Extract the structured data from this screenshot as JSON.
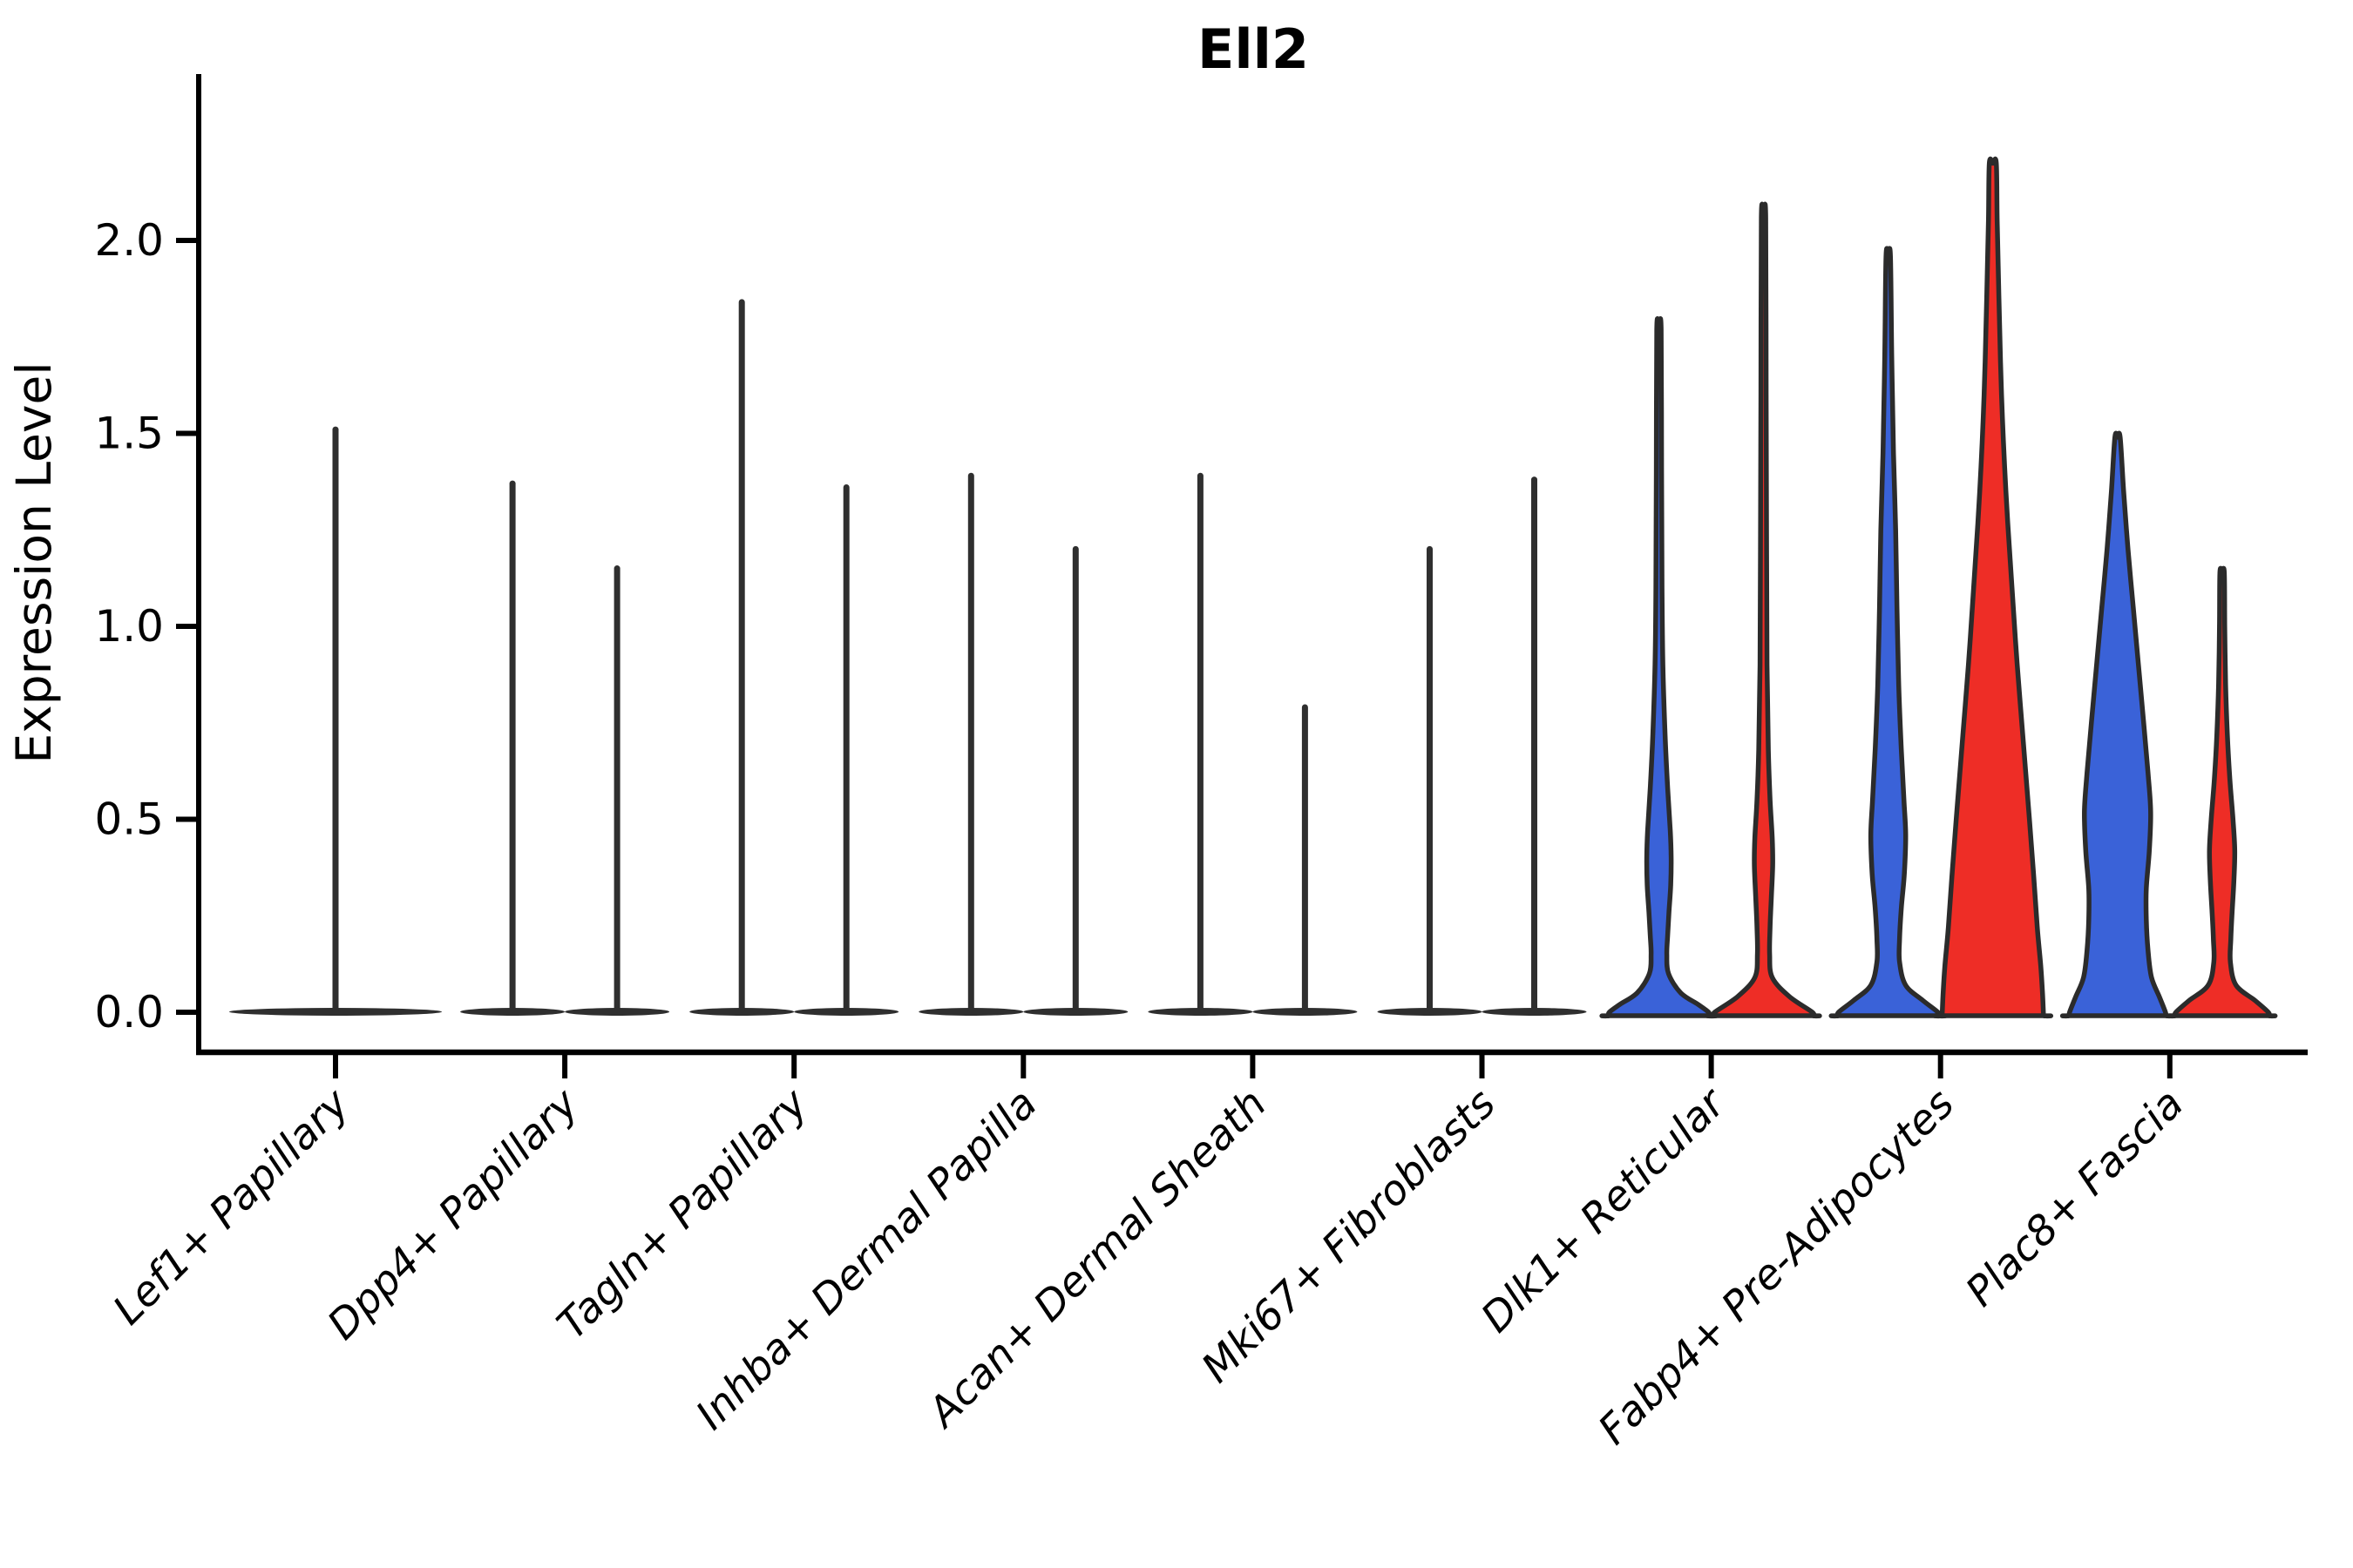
{
  "chart_data": {
    "type": "violin",
    "title": "Ell2",
    "ylabel": "Expression Level",
    "xlabel": "",
    "ylim": [
      0,
      2.45
    ],
    "yticks": [
      "0.0",
      "0.5",
      "1.0",
      "1.5",
      "2.0"
    ],
    "ytick_values": [
      0.0,
      0.5,
      1.0,
      1.5,
      2.0
    ],
    "grid": "off",
    "legend": "none",
    "categories": [
      "Lef1+ Papillary",
      "Dpp4+ Papillary",
      "Tagln+ Papillary",
      "Inhba+ Dermal Papilla",
      "Acan+ Dermal Sheath",
      "Mki67+ Fibroblasts",
      "Dlk1+ Reticular",
      "Fabp4+ Pre-Adipocytes",
      "Plac8+ Fascia"
    ],
    "series": [
      {
        "name": "blue",
        "color": "#3A62D8",
        "max_expression": [
          1.51,
          1.37,
          1.84,
          1.39,
          1.39,
          1.2,
          1.77,
          1.96,
          1.49
        ]
      },
      {
        "name": "red",
        "color": "#EE2D26",
        "max_expression": [
          null,
          1.15,
          1.36,
          1.2,
          0.79,
          1.38,
          2.06,
          2.2,
          1.14
        ]
      }
    ],
    "flat_violins": [
      {
        "cat": 0,
        "offset": 0,
        "base_halfwidth": 122,
        "spike": 1.51
      },
      {
        "cat": 1,
        "offset": -60,
        "base_halfwidth": 60,
        "spike": 1.37
      },
      {
        "cat": 1,
        "offset": 60,
        "base_halfwidth": 60,
        "spike": 1.15
      },
      {
        "cat": 2,
        "offset": -60,
        "base_halfwidth": 60,
        "spike": 1.84
      },
      {
        "cat": 2,
        "offset": 60,
        "base_halfwidth": 60,
        "spike": 1.36
      },
      {
        "cat": 3,
        "offset": -60,
        "base_halfwidth": 60,
        "spike": 1.39
      },
      {
        "cat": 3,
        "offset": 60,
        "base_halfwidth": 60,
        "spike": 1.2
      },
      {
        "cat": 4,
        "offset": -60,
        "base_halfwidth": 60,
        "spike": 1.39
      },
      {
        "cat": 4,
        "offset": 60,
        "base_halfwidth": 60,
        "spike": 0.79
      },
      {
        "cat": 5,
        "offset": -60,
        "base_halfwidth": 60,
        "spike": 1.2
      },
      {
        "cat": 5,
        "offset": 60,
        "base_halfwidth": 60,
        "spike": 1.38
      }
    ],
    "shaped_violins": [
      {
        "cat": 6,
        "offset": -60,
        "series": "blue",
        "profile": [
          [
            1.77,
            2.5
          ],
          [
            1.4,
            3
          ],
          [
            1.1,
            3.5
          ],
          [
            0.9,
            4.5
          ],
          [
            0.72,
            7
          ],
          [
            0.58,
            10
          ],
          [
            0.47,
            13
          ],
          [
            0.4,
            14
          ],
          [
            0.33,
            13.5
          ],
          [
            0.26,
            11.5
          ],
          [
            0.2,
            10
          ],
          [
            0.15,
            9
          ],
          [
            0.1,
            11
          ],
          [
            0.05,
            25
          ],
          [
            0.02,
            45
          ],
          [
            0,
            57
          ]
        ]
      },
      {
        "cat": 6,
        "offset": 60,
        "series": "red",
        "profile": [
          [
            2.06,
            2.5
          ],
          [
            1.6,
            3
          ],
          [
            1.2,
            3.5
          ],
          [
            0.9,
            4
          ],
          [
            0.68,
            5.5
          ],
          [
            0.55,
            7.5
          ],
          [
            0.45,
            10
          ],
          [
            0.38,
            10.5
          ],
          [
            0.3,
            9
          ],
          [
            0.22,
            7.5
          ],
          [
            0.15,
            7
          ],
          [
            0.09,
            10
          ],
          [
            0.04,
            30
          ],
          [
            0,
            56
          ]
        ]
      },
      {
        "cat": 7,
        "offset": -60,
        "series": "blue",
        "profile": [
          [
            1.96,
            2.5
          ],
          [
            1.7,
            4
          ],
          [
            1.45,
            6
          ],
          [
            1.25,
            8.5
          ],
          [
            1.05,
            10
          ],
          [
            0.85,
            12
          ],
          [
            0.68,
            15
          ],
          [
            0.55,
            18
          ],
          [
            0.46,
            20
          ],
          [
            0.36,
            18.5
          ],
          [
            0.27,
            15
          ],
          [
            0.19,
            13
          ],
          [
            0.13,
            13
          ],
          [
            0.07,
            20
          ],
          [
            0.03,
            40
          ],
          [
            0,
            57
          ]
        ]
      },
      {
        "cat": 7,
        "offset": 60,
        "series": "red",
        "profile": [
          [
            2.2,
            4
          ],
          [
            2.05,
            5
          ],
          [
            1.85,
            7
          ],
          [
            1.6,
            10
          ],
          [
            1.35,
            15
          ],
          [
            1.1,
            22
          ],
          [
            0.9,
            28
          ],
          [
            0.7,
            35
          ],
          [
            0.5,
            42
          ],
          [
            0.35,
            47
          ],
          [
            0.22,
            51
          ],
          [
            0.12,
            55
          ],
          [
            0.05,
            57
          ],
          [
            0,
            58
          ]
        ]
      },
      {
        "cat": 8,
        "offset": -60,
        "series": "blue",
        "profile": [
          [
            1.49,
            3
          ],
          [
            1.35,
            7
          ],
          [
            1.2,
            12
          ],
          [
            1.05,
            18
          ],
          [
            0.9,
            24
          ],
          [
            0.75,
            30
          ],
          [
            0.62,
            35
          ],
          [
            0.52,
            38
          ],
          [
            0.42,
            36.5
          ],
          [
            0.32,
            33
          ],
          [
            0.24,
            33
          ],
          [
            0.16,
            35
          ],
          [
            0.09,
            39
          ],
          [
            0.04,
            48
          ],
          [
            0,
            55
          ]
        ]
      },
      {
        "cat": 8,
        "offset": 60,
        "series": "red",
        "profile": [
          [
            1.14,
            2.5
          ],
          [
            1.0,
            3
          ],
          [
            0.85,
            4
          ],
          [
            0.72,
            6
          ],
          [
            0.6,
            9
          ],
          [
            0.5,
            12.5
          ],
          [
            0.42,
            14.5
          ],
          [
            0.34,
            13.5
          ],
          [
            0.26,
            11.5
          ],
          [
            0.19,
            10
          ],
          [
            0.13,
            9.5
          ],
          [
            0.07,
            16
          ],
          [
            0.03,
            38
          ],
          [
            0,
            53
          ]
        ]
      }
    ],
    "colors": {
      "blue_fill": "#3A62D8",
      "red_fill": "#EE2D26",
      "outline": "#2B2B2B",
      "spike": "#2F2F2F",
      "axis": "#000000",
      "background": "#FFFFFF"
    }
  }
}
